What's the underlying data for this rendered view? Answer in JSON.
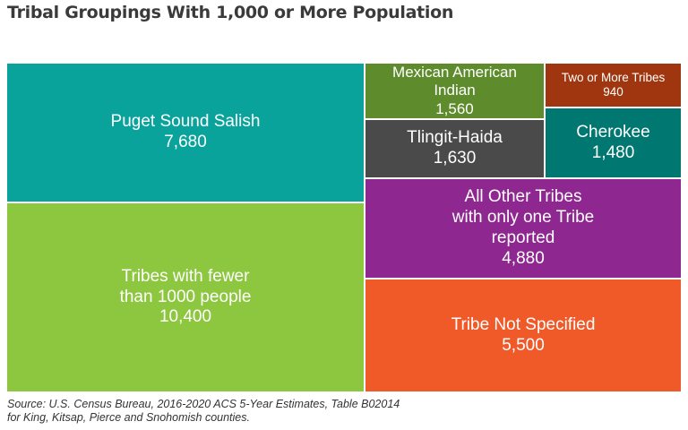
{
  "chart_data": {
    "type": "treemap",
    "title": "Tribal Groupings With 1,000 or More Population",
    "source_lines": [
      "Source: U.S. Census Bureau, 2016-2020 ACS 5-Year Estimates, Table B02014",
      "for King, Kitsap, Pierce and Snohomish counties."
    ],
    "items": [
      {
        "label": "Puget Sound Salish",
        "value": 7680,
        "display": "7,680",
        "color": "#0aa39c"
      },
      {
        "label": "Tribes with fewer\nthan 1000 people",
        "value": 10400,
        "display": "10,400",
        "color": "#8dc63f"
      },
      {
        "label": "Mexican American\nIndian",
        "value": 1560,
        "display": "1,560",
        "color": "#5e8c2d"
      },
      {
        "label": "Tlingit-Haida",
        "value": 1630,
        "display": "1,630",
        "color": "#4a4a4a"
      },
      {
        "label": "Two or More Tribes",
        "value": 940,
        "display": "940",
        "color": "#a0360f"
      },
      {
        "label": "Cherokee",
        "value": 1480,
        "display": "1,480",
        "color": "#007770"
      },
      {
        "label": "All Other Tribes\nwith only one Tribe\nreported",
        "value": 4880,
        "display": "4,880",
        "color": "#8e278f"
      },
      {
        "label": "Tribe Not Specified",
        "value": 5500,
        "display": "5,500",
        "color": "#f05a28"
      }
    ]
  }
}
